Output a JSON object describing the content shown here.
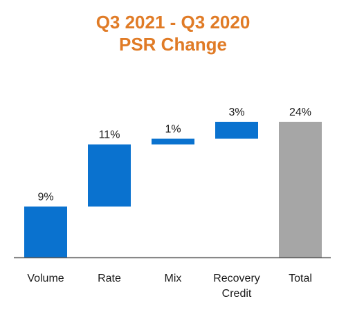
{
  "chart_data": {
    "type": "bar",
    "subtype": "waterfall",
    "title_line1": "Q3 2021 - Q3 2020",
    "title_line2": "PSR Change",
    "categories": [
      [
        "Volume"
      ],
      [
        "Rate"
      ],
      [
        "Mix"
      ],
      [
        "Recovery",
        "Credit"
      ],
      [
        "Total"
      ]
    ],
    "values": [
      9,
      11,
      1,
      3,
      24
    ],
    "value_labels": [
      "9%",
      "11%",
      "1%",
      "3%",
      "24%"
    ],
    "bar_kinds": [
      "increment",
      "increment",
      "increment",
      "increment",
      "total"
    ],
    "ylim": [
      0,
      24
    ],
    "grid": false,
    "colors": {
      "increment": "#0a72cf",
      "total": "#a6a6a6",
      "title": "#e07b26",
      "axis": "#5a5a5a"
    }
  }
}
